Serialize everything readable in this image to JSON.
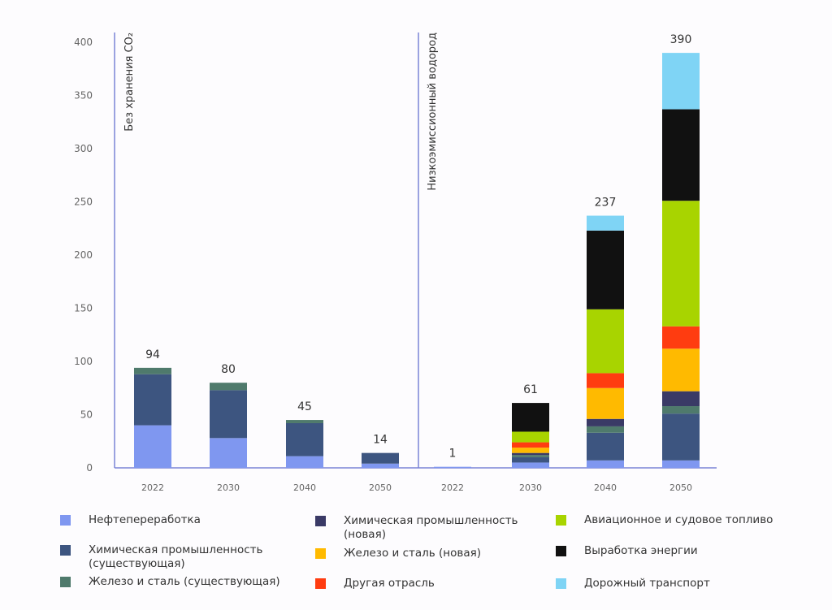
{
  "chart_data": {
    "type": "bar",
    "stacked": true,
    "ylim": [
      0,
      400
    ],
    "yticks": [
      0,
      50,
      100,
      150,
      200,
      250,
      300,
      350,
      400
    ],
    "grid": false,
    "legend_position": "bottom",
    "groups": [
      {
        "label": "Без хранения CO₂",
        "categories": [
          "2022",
          "2030",
          "2040",
          "2050"
        ],
        "totals": [
          "94",
          "80",
          "45",
          "14"
        ]
      },
      {
        "label": "Низкоэмиссионный водород",
        "categories": [
          "2022",
          "2030",
          "2040",
          "2050"
        ],
        "totals": [
          "1",
          "61",
          "237",
          "390"
        ]
      }
    ],
    "series": [
      {
        "name": "Нефтепереработка",
        "color": "#7f97f0",
        "values": [
          [
            40,
            28,
            11,
            4
          ],
          [
            1,
            5,
            7,
            7
          ]
        ]
      },
      {
        "name": "Химическая промышленность (существующая)",
        "color": "#3d5580",
        "values": [
          [
            48,
            45,
            31,
            10
          ],
          [
            0,
            5,
            26,
            44
          ]
        ]
      },
      {
        "name": "Железо и сталь (существующая)",
        "color": "#4f7a6c",
        "values": [
          [
            6,
            7,
            3,
            0
          ],
          [
            0,
            2,
            6,
            7
          ]
        ]
      },
      {
        "name": "Химическая промышленность (новая)",
        "color": "#3a3a66",
        "values": [
          [
            0,
            0,
            0,
            0
          ],
          [
            0,
            2,
            7,
            14
          ]
        ]
      },
      {
        "name": "Железо и сталь (новая)",
        "color": "#ffba00",
        "values": [
          [
            0,
            0,
            0,
            0
          ],
          [
            0,
            5,
            29,
            40
          ]
        ]
      },
      {
        "name": "Другая отрасль",
        "color": "#ff3c10",
        "values": [
          [
            0,
            0,
            0,
            0
          ],
          [
            0,
            5,
            14,
            21
          ]
        ]
      },
      {
        "name": "Авиационное и судовое топливо",
        "color": "#a8d400",
        "values": [
          [
            0,
            0,
            0,
            0
          ],
          [
            0,
            10,
            60,
            118
          ]
        ]
      },
      {
        "name": "Выработка энергии",
        "color": "#111111",
        "values": [
          [
            0,
            0,
            0,
            0
          ],
          [
            0,
            27,
            74,
            86
          ]
        ]
      },
      {
        "name": "Дорожный транспорт",
        "color": "#7fd4f5",
        "values": [
          [
            0,
            0,
            0,
            0
          ],
          [
            0,
            0,
            14,
            53
          ]
        ]
      }
    ]
  },
  "legend": {
    "items": [
      "Нефтепереработка",
      "Химическая промышленность\n(существующая)",
      "Железо и сталь (существующая)",
      "Химическая промышленность\n(новая)",
      "Железо и сталь (новая)",
      "Другая отрасль",
      "Авиационное и судовое топливо",
      "Выработка энергии",
      "Дорожный транспорт"
    ]
  }
}
